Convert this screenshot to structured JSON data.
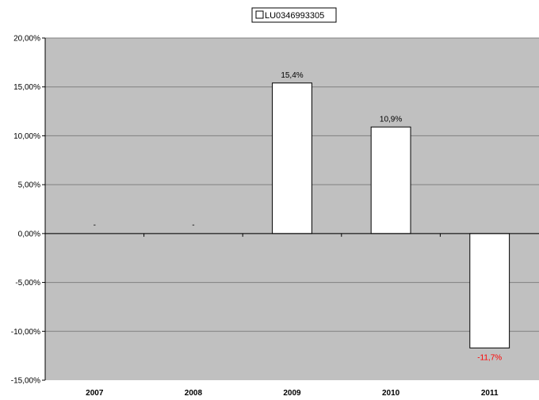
{
  "chart_data": {
    "type": "bar",
    "categories": [
      "2007",
      "2008",
      "2009",
      "2010",
      "2011"
    ],
    "series": [
      {
        "name": "LU0346993305",
        "values": [
          null,
          null,
          15.4,
          10.9,
          -11.7
        ],
        "labels": [
          "-",
          "-",
          "15,4%",
          "10,9%",
          "-11,7%"
        ]
      }
    ],
    "ylim": [
      -15,
      20
    ],
    "yticks": [
      20,
      15,
      10,
      5,
      0,
      -5,
      -10,
      -15
    ],
    "ytick_labels": [
      "20,00%",
      "15,00%",
      "10,00%",
      "5,00%",
      "0,00%",
      "-5,00%",
      "-10,00%",
      "-15,00%"
    ],
    "grid": true,
    "legend": "top-center",
    "colors": {
      "plot_background": "#c0c0c0",
      "bar_fill": "#ffffff",
      "bar_stroke": "#000000",
      "gridline": "#808080",
      "negative_label": "#ff0000",
      "positive_label": "#000000"
    }
  }
}
